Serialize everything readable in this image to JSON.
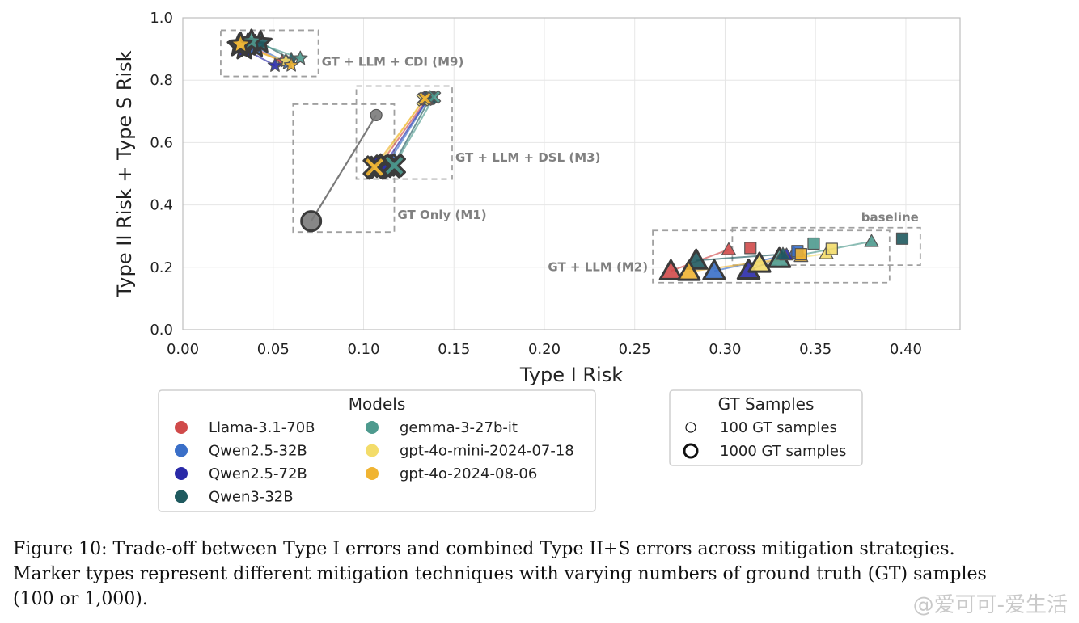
{
  "chart_data": {
    "type": "scatter",
    "xlabel": "Type I Risk",
    "ylabel": "Type II Risk + Type S Risk",
    "xlim": [
      0.0,
      0.43
    ],
    "ylim": [
      0.0,
      1.0
    ],
    "xticks": [
      "0.00",
      "0.05",
      "0.10",
      "0.15",
      "0.20",
      "0.25",
      "0.30",
      "0.35",
      "0.40"
    ],
    "yticks": [
      "0.0",
      "0.2",
      "0.4",
      "0.6",
      "0.8",
      "1.0"
    ],
    "grid": true,
    "colors": {
      "Llama-3.1-70B": "#d04a4a",
      "Qwen2.5-32B": "#3a6fc8",
      "Qwen2.5-72B": "#2a2aa8",
      "Qwen3-32B": "#1f5a5f",
      "gemma-3-27b-it": "#4e9a8e",
      "gpt-4o-mini-2024-07-18": "#f3dc6a",
      "gpt-4o-2024-08-06": "#f0b432",
      "GT": "#7a7a7a"
    },
    "groups": [
      {
        "label": "GT Only (M1)",
        "marker": "circle",
        "model": "GT",
        "points": [
          {
            "x": 0.107,
            "y": 0.688,
            "gt": 100
          },
          {
            "x": 0.071,
            "y": 0.348,
            "gt": 1000
          }
        ]
      },
      {
        "label": "GT + LLM + DSL (M3)",
        "marker": "x",
        "pairs": [
          {
            "model": "Llama-3.1-70B",
            "p100": [
              0.135,
              0.74
            ],
            "p1000": [
              0.108,
              0.52
            ]
          },
          {
            "model": "Qwen2.5-32B",
            "p100": [
              0.136,
              0.742
            ],
            "p1000": [
              0.113,
              0.528
            ]
          },
          {
            "model": "Qwen2.5-72B",
            "p100": [
              0.136,
              0.744
            ],
            "p1000": [
              0.111,
              0.524
            ]
          },
          {
            "model": "Qwen3-32B",
            "p100": [
              0.137,
              0.744
            ],
            "p1000": [
              0.116,
              0.523
            ]
          },
          {
            "model": "gemma-3-27b-it",
            "p100": [
              0.139,
              0.746
            ],
            "p1000": [
              0.117,
              0.526
            ]
          },
          {
            "model": "gpt-4o-mini-2024-07-18",
            "p100": [
              0.133,
              0.738
            ],
            "p1000": [
              0.107,
              0.518
            ]
          },
          {
            "model": "gpt-4o-2024-08-06",
            "p100": [
              0.134,
              0.741
            ],
            "p1000": [
              0.106,
              0.521
            ]
          }
        ]
      },
      {
        "label": "GT + LLM + CDI (M9)",
        "marker": "star",
        "pairs": [
          {
            "model": "Llama-3.1-70B",
            "p100": [
              0.055,
              0.86
            ],
            "p1000": [
              0.036,
              0.912
            ]
          },
          {
            "model": "Qwen2.5-32B",
            "p100": [
              0.058,
              0.855
            ],
            "p1000": [
              0.04,
              0.908
            ]
          },
          {
            "model": "Qwen2.5-72B",
            "p100": [
              0.051,
              0.847
            ],
            "p1000": [
              0.034,
              0.9
            ]
          },
          {
            "model": "Qwen3-32B",
            "p100": [
              0.06,
              0.866
            ],
            "p1000": [
              0.043,
              0.921
            ]
          },
          {
            "model": "gemma-3-27b-it",
            "p100": [
              0.065,
              0.87
            ],
            "p1000": [
              0.038,
              0.925
            ]
          },
          {
            "model": "gpt-4o-mini-2024-07-18",
            "p100": [
              0.057,
              0.862
            ],
            "p1000": [
              0.031,
              0.91
            ]
          },
          {
            "model": "gpt-4o-2024-08-06",
            "p100": [
              0.06,
              0.848
            ],
            "p1000": [
              0.032,
              0.915
            ]
          }
        ]
      },
      {
        "label": "GT + LLM (M2)",
        "marker": "triangle",
        "pairs": [
          {
            "model": "Llama-3.1-70B",
            "p100": [
              0.302,
              0.257
            ],
            "p1000": [
              0.27,
              0.188
            ]
          },
          {
            "model": "Qwen2.5-32B",
            "p100": [
              0.338,
              0.245
            ],
            "p1000": [
              0.294,
              0.188
            ]
          },
          {
            "model": "Qwen2.5-72B",
            "p100": [
              0.334,
              0.24
            ],
            "p1000": [
              0.313,
              0.19
            ]
          },
          {
            "model": "Qwen3-32B",
            "p100": [
              0.332,
              0.242
            ],
            "p1000": [
              0.284,
              0.222
            ]
          },
          {
            "model": "gemma-3-27b-it",
            "p100": [
              0.381,
              0.283
            ],
            "p1000": [
              0.33,
              0.227
            ]
          },
          {
            "model": "gpt-4o-mini-2024-07-18",
            "p100": [
              0.356,
              0.244
            ],
            "p1000": [
              0.319,
              0.212
            ]
          },
          {
            "model": "gpt-4o-2024-08-06",
            "p100": [
              0.342,
              0.235
            ],
            "p1000": [
              0.28,
              0.186
            ]
          }
        ]
      },
      {
        "label": "baseline",
        "marker": "square",
        "points": [
          {
            "model": "Llama-3.1-70B",
            "x": 0.314,
            "y": 0.262
          },
          {
            "model": "Qwen2.5-32B",
            "x": 0.34,
            "y": 0.252
          },
          {
            "model": "gemma-3-27b-it",
            "x": 0.349,
            "y": 0.276
          },
          {
            "model": "gpt-4o-mini-2024-07-18",
            "x": 0.359,
            "y": 0.259
          },
          {
            "model": "gpt-4o-2024-08-06",
            "x": 0.342,
            "y": 0.242
          },
          {
            "model": "Qwen3-32B",
            "x": 0.398,
            "y": 0.292
          }
        ]
      }
    ],
    "legend_models": {
      "title": "Models",
      "items": [
        {
          "label": "Llama-3.1-70B",
          "color": "#d04a4a"
        },
        {
          "label": "Qwen2.5-32B",
          "color": "#3a6fc8"
        },
        {
          "label": "Qwen2.5-72B",
          "color": "#2a2aa8"
        },
        {
          "label": "Qwen3-32B",
          "color": "#1f5a5f"
        },
        {
          "label": "gemma-3-27b-it",
          "color": "#4e9a8e"
        },
        {
          "label": "gpt-4o-mini-2024-07-18",
          "color": "#f3dc6a"
        },
        {
          "label": "gpt-4o-2024-08-06",
          "color": "#f0b432"
        }
      ]
    },
    "legend_gt": {
      "title": "GT Samples",
      "items": [
        {
          "label": "100 GT samples"
        },
        {
          "label": "1000 GT samples"
        }
      ]
    }
  },
  "caption": {
    "line1": "Figure 10: Trade-off between Type I errors and combined Type II+S errors across mitigation strategies.",
    "line2": "Marker types represent different mitigation techniques with varying numbers of ground truth (GT) samples",
    "line3": "(100 or 1,000)."
  },
  "watermark": "@爱可可-爱生活"
}
